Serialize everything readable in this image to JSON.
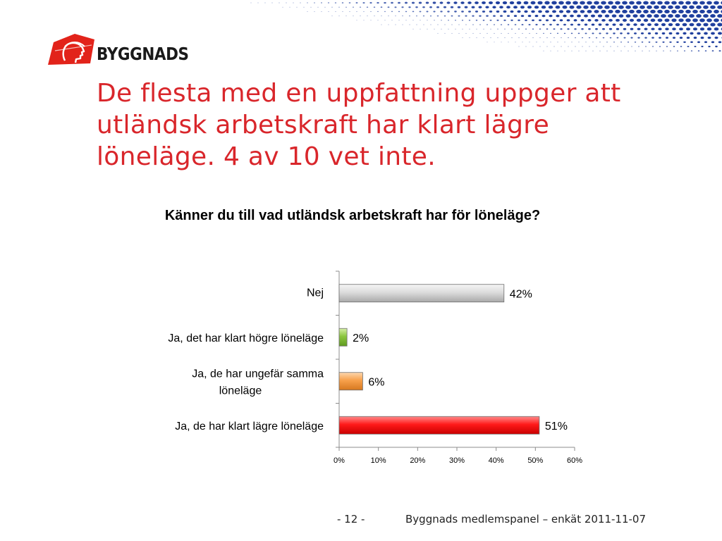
{
  "logo": {
    "text": "BYGGNADS"
  },
  "slide": {
    "title": "De flesta med en uppfattning uppger att utländsk arbetskraft har klart lägre löneläge. 4 av 10 vet inte."
  },
  "chart_data": {
    "type": "bar",
    "orientation": "horizontal",
    "title": "Känner du till vad utländsk arbetskraft har för löneläge?",
    "categories": [
      "Nej",
      "Ja, det har klart högre löneläge",
      "Ja, de har ungefär samma löneläge",
      "Ja, de har klart lägre löneläge"
    ],
    "category_lines": [
      [
        "Nej"
      ],
      [
        "Ja, det har klart högre löneläge"
      ],
      [
        "Ja, de har ungefär samma",
        "löneläge"
      ],
      [
        "Ja, de har klart lägre löneläge"
      ]
    ],
    "values": [
      42,
      2,
      6,
      51
    ],
    "data_labels": [
      "42%",
      "2%",
      "6%",
      "51%"
    ],
    "bar_colors": [
      "#c9c9c9",
      "#8cc63f",
      "#f7a04b",
      "#ff1a1a"
    ],
    "xlim": [
      0,
      60
    ],
    "xticks": [
      0,
      10,
      20,
      30,
      40,
      50,
      60
    ],
    "xtick_labels": [
      "0%",
      "10%",
      "20%",
      "30%",
      "40%",
      "50%",
      "60%"
    ],
    "grid": false,
    "legend": "none"
  },
  "footer": {
    "page": "- 12 -",
    "text": "Byggnads medlemspanel – enkät 2011-11-07"
  },
  "colors": {
    "title_red": "#d9262b",
    "logo_red": "#e2231a",
    "dots_blue": "#1f3f9e"
  }
}
